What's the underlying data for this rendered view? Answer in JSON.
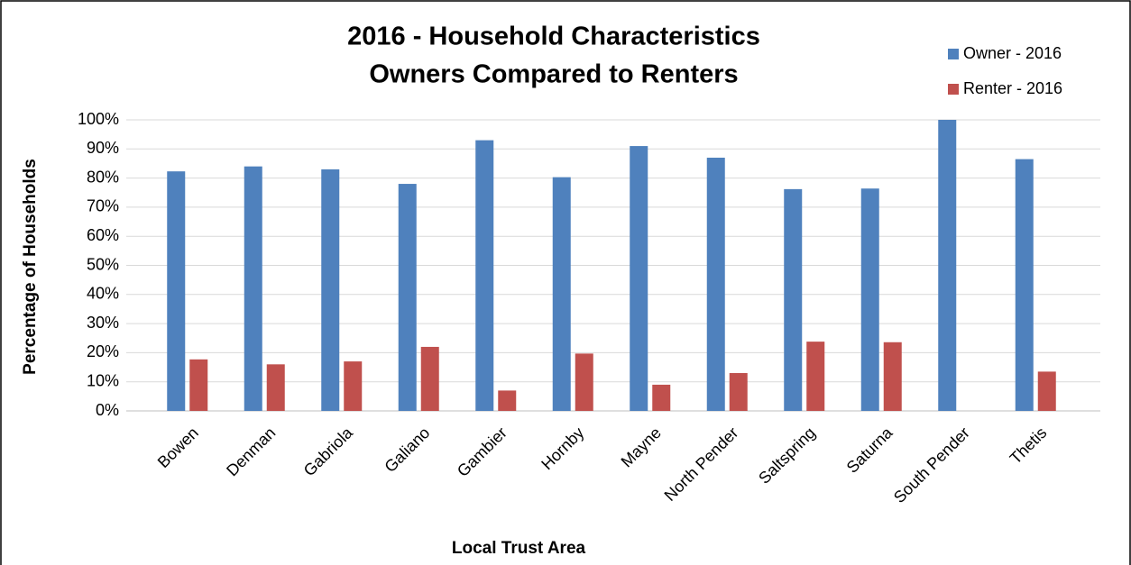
{
  "chart_data": {
    "type": "bar",
    "title": "2016 - Household Characteristics",
    "subtitle": "Owners Compared to Renters",
    "x_label": "Local Trust Area",
    "y_label": "Percentage of Households",
    "categories": [
      "Bowen",
      "Denman",
      "Gabriola",
      "Galiano",
      "Gambier",
      "Hornby",
      "Mayne",
      "North Pender",
      "Saltspring",
      "Saturna",
      "South Pender",
      "Thetis"
    ],
    "series": [
      {
        "name": "Owner - 2016",
        "color": "#4f81bd",
        "values": [
          82.3,
          84,
          83,
          78,
          93,
          80.3,
          91,
          87,
          76.2,
          76.4,
          100,
          86.5
        ]
      },
      {
        "name": "Renter - 2016",
        "color": "#c0504d",
        "values": [
          17.7,
          16,
          17,
          22,
          7,
          19.7,
          9,
          13,
          23.8,
          23.6,
          0,
          13.5
        ]
      }
    ],
    "ylim": [
      0,
      100
    ],
    "yticks": [
      {
        "value": 0,
        "label": "0%"
      },
      {
        "value": 10,
        "label": "10%"
      },
      {
        "value": 20,
        "label": "20%"
      },
      {
        "value": 30,
        "label": "30%"
      },
      {
        "value": 40,
        "label": "40%"
      },
      {
        "value": 50,
        "label": "50%"
      },
      {
        "value": 60,
        "label": "60%"
      },
      {
        "value": 70,
        "label": "70%"
      },
      {
        "value": 80,
        "label": "80%"
      },
      {
        "value": 90,
        "label": "90%"
      },
      {
        "value": 100,
        "label": "100%"
      }
    ],
    "grid": true,
    "legend": "top-right"
  }
}
